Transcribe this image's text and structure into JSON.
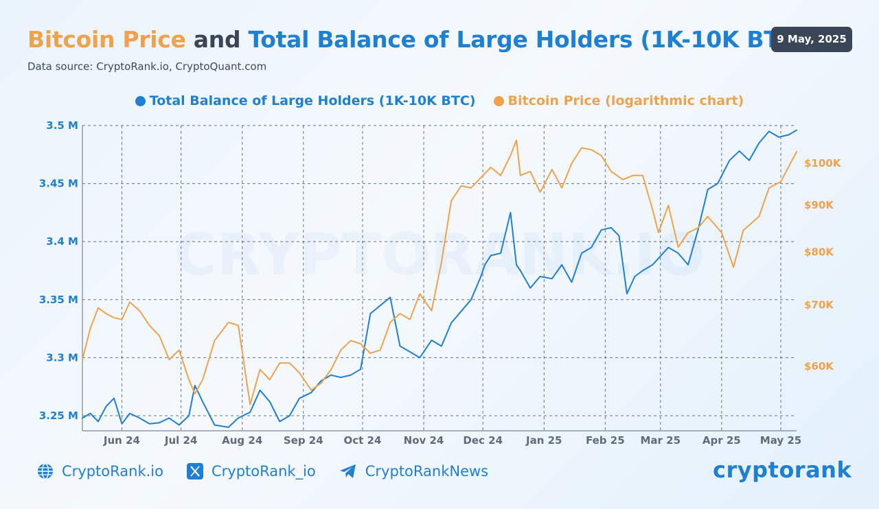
{
  "header": {
    "title_part1": "Bitcoin Price",
    "title_part2": "and",
    "title_part3": "Total Balance of Large Holders (1K-10K BTC)",
    "source": "Data source: CryptoRank.io, CryptoQuant.com",
    "date": "9 May, 2025"
  },
  "watermark": "CRYPTORANK.IO",
  "footer": {
    "website": "CryptoRank.io",
    "twitter": "CryptoRank_io",
    "telegram": "CryptoRankNews",
    "brand": "cryptorank"
  },
  "colors": {
    "balance": "#1f7fd1",
    "price": "#efa24a",
    "title_dark": "#3a4556",
    "axis": "#5f6b7a"
  },
  "chart_data": {
    "type": "line",
    "grid": true,
    "legend_position": "top-center",
    "x_tick_labels": [
      "Jun 24",
      "Jul 24",
      "Aug 24",
      "Sep 24",
      "Oct 24",
      "Nov 24",
      "Dec 24",
      "Jan 25",
      "Feb 25",
      "Mar 25",
      "Apr 25",
      "May 25"
    ],
    "x_range": [
      "2024-05-12",
      "2025-05-09"
    ],
    "left_axis": {
      "ticks": [
        3.25,
        3.3,
        3.35,
        3.4,
        3.45,
        3.5
      ],
      "tick_labels": [
        "3.25 M",
        "3.3 M",
        "3.35 M",
        "3.4 M",
        "3.45 M",
        "3.5 M"
      ],
      "range": [
        3.237,
        3.5
      ]
    },
    "right_axis": {
      "scale": "log",
      "ticks": [
        60000,
        70000,
        80000,
        90000,
        100000
      ],
      "tick_labels": [
        "$60K",
        "$70K",
        "$80K",
        "$90K",
        "$100K"
      ],
      "range": [
        51000,
        110000
      ]
    },
    "series": [
      {
        "name": "Total Balance of Large Holders (1K-10K BTC)",
        "axis": "left",
        "unit": "BTC (millions)",
        "x": [
          "2024-05-12",
          "2024-05-16",
          "2024-05-20",
          "2024-05-24",
          "2024-05-28",
          "2024-06-01",
          "2024-06-05",
          "2024-06-10",
          "2024-06-15",
          "2024-06-20",
          "2024-06-25",
          "2024-06-30",
          "2024-07-05",
          "2024-07-08",
          "2024-07-12",
          "2024-07-18",
          "2024-07-25",
          "2024-07-30",
          "2024-08-05",
          "2024-08-10",
          "2024-08-15",
          "2024-08-20",
          "2024-08-25",
          "2024-08-30",
          "2024-09-05",
          "2024-09-10",
          "2024-09-15",
          "2024-09-20",
          "2024-09-25",
          "2024-09-30",
          "2024-10-05",
          "2024-10-10",
          "2024-10-15",
          "2024-10-20",
          "2024-10-25",
          "2024-10-30",
          "2024-11-05",
          "2024-11-10",
          "2024-11-15",
          "2024-11-20",
          "2024-11-25",
          "2024-11-30",
          "2024-12-02",
          "2024-12-05",
          "2024-12-10",
          "2024-12-15",
          "2024-12-18",
          "2024-12-20",
          "2024-12-25",
          "2024-12-30",
          "2025-01-05",
          "2025-01-10",
          "2025-01-15",
          "2025-01-20",
          "2025-01-25",
          "2025-01-30",
          "2025-02-04",
          "2025-02-08",
          "2025-02-12",
          "2025-02-16",
          "2025-02-20",
          "2025-02-25",
          "2025-03-05",
          "2025-03-10",
          "2025-03-15",
          "2025-03-20",
          "2025-03-25",
          "2025-03-30",
          "2025-04-05",
          "2025-04-10",
          "2025-04-15",
          "2025-04-20",
          "2025-04-25",
          "2025-04-30",
          "2025-05-05",
          "2025-05-09"
        ],
        "values": [
          3.248,
          3.252,
          3.245,
          3.258,
          3.265,
          3.243,
          3.252,
          3.248,
          3.243,
          3.244,
          3.248,
          3.242,
          3.25,
          3.276,
          3.262,
          3.242,
          3.24,
          3.248,
          3.253,
          3.272,
          3.262,
          3.245,
          3.25,
          3.265,
          3.27,
          3.28,
          3.285,
          3.283,
          3.285,
          3.29,
          3.338,
          3.345,
          3.352,
          3.31,
          3.305,
          3.3,
          3.315,
          3.31,
          3.33,
          3.34,
          3.35,
          3.37,
          3.38,
          3.388,
          3.39,
          3.425,
          3.38,
          3.375,
          3.36,
          3.37,
          3.368,
          3.38,
          3.365,
          3.39,
          3.395,
          3.41,
          3.412,
          3.405,
          3.355,
          3.37,
          3.375,
          3.38,
          3.395,
          3.39,
          3.38,
          3.41,
          3.445,
          3.45,
          3.47,
          3.478,
          3.47,
          3.485,
          3.495,
          3.49,
          3.492,
          3.496
        ]
      },
      {
        "name": "Bitcoin Price (logarithmic chart)",
        "axis": "right",
        "unit": "USD",
        "x": [
          "2024-05-12",
          "2024-05-16",
          "2024-05-20",
          "2024-05-24",
          "2024-05-28",
          "2024-06-01",
          "2024-06-05",
          "2024-06-10",
          "2024-06-15",
          "2024-06-20",
          "2024-06-25",
          "2024-06-30",
          "2024-07-05",
          "2024-07-08",
          "2024-07-12",
          "2024-07-18",
          "2024-07-25",
          "2024-07-30",
          "2024-08-05",
          "2024-08-10",
          "2024-08-15",
          "2024-08-20",
          "2024-08-25",
          "2024-08-30",
          "2024-09-05",
          "2024-09-10",
          "2024-09-15",
          "2024-09-20",
          "2024-09-25",
          "2024-09-30",
          "2024-10-05",
          "2024-10-10",
          "2024-10-15",
          "2024-10-20",
          "2024-10-25",
          "2024-10-30",
          "2024-11-05",
          "2024-11-10",
          "2024-11-15",
          "2024-11-20",
          "2024-11-25",
          "2024-11-30",
          "2024-12-05",
          "2024-12-10",
          "2024-12-15",
          "2024-12-18",
          "2024-12-20",
          "2024-12-25",
          "2024-12-30",
          "2025-01-05",
          "2025-01-10",
          "2025-01-15",
          "2025-01-20",
          "2025-01-25",
          "2025-01-30",
          "2025-02-04",
          "2025-02-10",
          "2025-02-15",
          "2025-02-20",
          "2025-02-25",
          "2025-02-28",
          "2025-03-05",
          "2025-03-10",
          "2025-03-15",
          "2025-03-20",
          "2025-03-25",
          "2025-04-01",
          "2025-04-07",
          "2025-04-12",
          "2025-04-20",
          "2025-04-25",
          "2025-05-01",
          "2025-05-09"
        ],
        "values": [
          61000,
          66000,
          69500,
          68500,
          67800,
          67500,
          70500,
          69000,
          66500,
          64800,
          61000,
          62500,
          58000,
          56000,
          58000,
          64000,
          67000,
          66500,
          54500,
          59500,
          58000,
          60500,
          60500,
          59000,
          56500,
          57500,
          59500,
          62500,
          64000,
          63500,
          62000,
          62500,
          67000,
          68500,
          67500,
          72000,
          69000,
          78000,
          91000,
          94500,
          94000,
          96500,
          99000,
          97000,
          102000,
          106000,
          97000,
          98000,
          93000,
          98500,
          94000,
          100000,
          104000,
          103500,
          102000,
          98000,
          96000,
          97000,
          97000,
          89000,
          84000,
          90000,
          81000,
          84000,
          85000,
          87500,
          84000,
          77000,
          84500,
          87500,
          94000,
          95500,
          103000
        ]
      }
    ]
  }
}
